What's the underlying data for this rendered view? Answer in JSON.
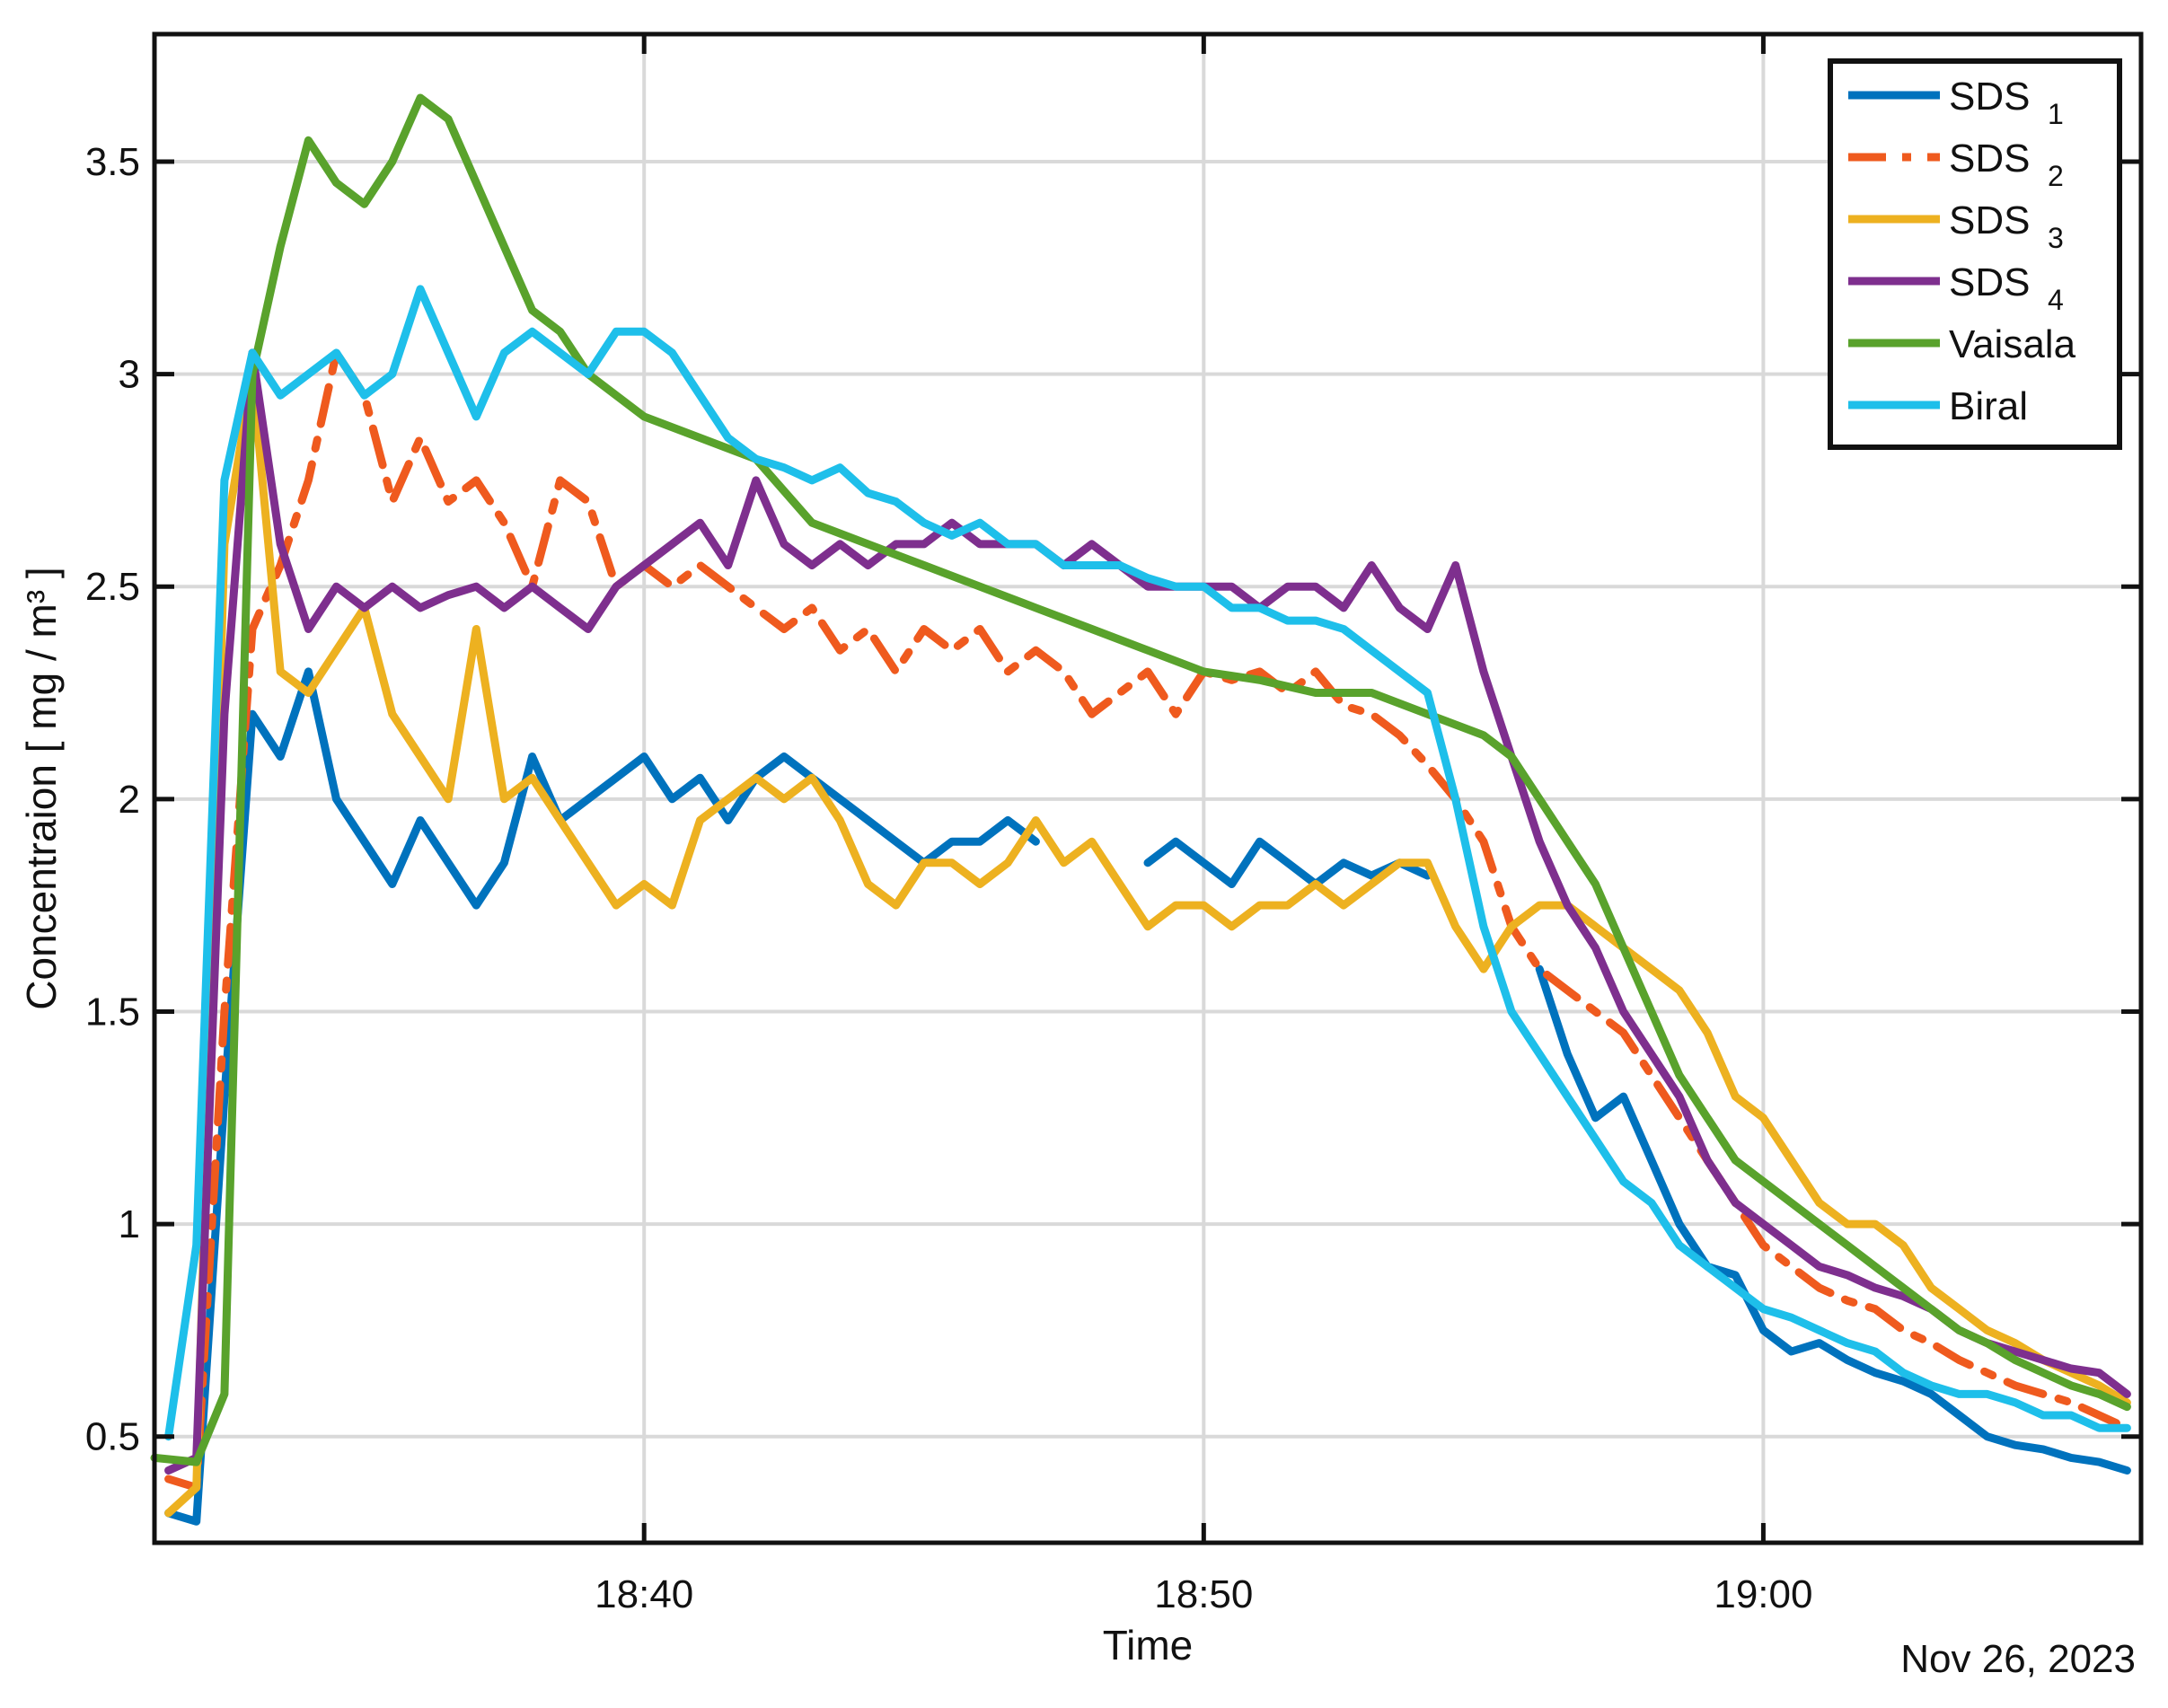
{
  "chart_data": {
    "type": "line",
    "title": "",
    "xlabel": "Time",
    "ylabel": "Concentraion [ mg / m³ ]",
    "date_label": "Nov 26, 2023",
    "xlim": [
      "18:31:15",
      "19:06:45"
    ],
    "ylim": [
      0.25,
      3.8
    ],
    "grid": true,
    "legend_position": "top-right",
    "x_ticks": [
      "18:40",
      "18:50",
      "19:00"
    ],
    "y_ticks": [
      "0.5",
      "1",
      "1.5",
      "2",
      "2.5",
      "3",
      "3.5"
    ],
    "x_unit": "time (HH:MM:SS, Nov 26, 2023)",
    "series": [
      {
        "name": "SDS 1",
        "legend_main": "SDS",
        "legend_sub": "1",
        "color": "#0072BD",
        "dashed": false,
        "x": [
          "18:31:30",
          "18:32:00",
          "18:32:30",
          "18:33:00",
          "18:33:30",
          "18:34:00",
          "18:34:30",
          "18:35:00",
          "18:35:30",
          "18:36:00",
          "18:36:30",
          "18:37:00",
          "18:37:30",
          "18:38:00",
          "18:38:30",
          "18:39:00",
          "18:39:30",
          "18:40:00",
          "18:40:30",
          "18:41:00",
          "18:41:30",
          "18:42:00",
          "18:42:30",
          "18:43:00",
          "18:43:30",
          "18:44:00",
          "18:44:30",
          "18:45:00",
          "18:45:30",
          "18:46:00",
          "18:46:30",
          "18:47:00",
          "18:47:30",
          "18:48:00",
          "18:48:30",
          "18:49:00",
          "18:49:30",
          "18:50:00",
          "18:50:30",
          "18:51:00",
          "18:51:30",
          "18:52:00",
          "18:52:30",
          "18:53:00",
          "18:53:30",
          "18:54:00",
          "18:54:30",
          "18:55:00",
          "18:55:30",
          "18:56:00",
          "18:56:30",
          "18:57:00",
          "18:57:30",
          "18:58:00",
          "18:58:30",
          "18:59:00",
          "18:59:30",
          "19:00:00",
          "19:00:30",
          "19:01:00",
          "19:01:30",
          "19:02:00",
          "19:02:30",
          "19:03:00",
          "19:03:30",
          "19:04:00",
          "19:04:30",
          "19:05:00",
          "19:05:30",
          "19:06:00",
          "19:06:30"
        ],
        "values": [
          0.32,
          0.3,
          1.3,
          2.2,
          2.1,
          2.3,
          2.0,
          1.9,
          1.8,
          1.95,
          1.85,
          1.75,
          1.85,
          2.1,
          1.95,
          2.0,
          2.05,
          2.1,
          2.0,
          2.05,
          1.95,
          2.05,
          2.1,
          2.05,
          2.0,
          1.95,
          1.9,
          1.85,
          1.9,
          1.9,
          1.95,
          1.9,
          null,
          null,
          null,
          1.85,
          1.9,
          1.85,
          1.8,
          1.9,
          1.85,
          1.8,
          1.85,
          1.82,
          1.85,
          1.82,
          null,
          null,
          null,
          1.6,
          1.4,
          1.25,
          1.3,
          1.15,
          1.0,
          0.9,
          0.88,
          0.75,
          0.7,
          0.72,
          0.68,
          0.65,
          0.63,
          0.6,
          0.55,
          0.5,
          0.48,
          0.47,
          0.45,
          0.44,
          0.42
        ]
      },
      {
        "name": "SDS 2",
        "legend_main": "SDS",
        "legend_sub": "2",
        "color": "#EF5A1E",
        "dashed": true,
        "x": [
          "18:31:30",
          "18:32:00",
          "18:32:30",
          "18:33:00",
          "18:33:30",
          "18:34:00",
          "18:34:30",
          "18:35:00",
          "18:35:30",
          "18:36:00",
          "18:36:30",
          "18:37:00",
          "18:37:30",
          "18:38:00",
          "18:38:30",
          "18:39:00",
          "18:39:30",
          "18:40:00",
          "18:40:30",
          "18:41:00",
          "18:41:30",
          "18:42:00",
          "18:42:30",
          "18:43:00",
          "18:43:30",
          "18:44:00",
          "18:44:30",
          "18:45:00",
          "18:45:30",
          "18:46:00",
          "18:46:30",
          "18:47:00",
          "18:47:30",
          "18:48:00",
          "18:48:30",
          "18:49:00",
          "18:49:30",
          "18:50:00",
          "18:50:30",
          "18:51:00",
          "18:51:30",
          "18:52:00",
          "18:52:30",
          "18:53:00",
          "18:53:30",
          "18:54:00",
          "18:54:30",
          "18:55:00",
          "18:55:30",
          "18:56:00",
          "18:56:30",
          "18:57:00",
          "18:57:30",
          "18:58:00",
          "18:58:30",
          "18:59:00",
          "18:59:30",
          "19:00:00",
          "19:00:30",
          "19:01:00",
          "19:01:30",
          "19:02:00",
          "19:02:30",
          "19:03:00",
          "19:03:30",
          "19:04:00",
          "19:04:30",
          "19:05:00",
          "19:05:30",
          "19:06:00",
          "19:06:30"
        ],
        "values": [
          0.4,
          0.38,
          1.5,
          2.4,
          2.55,
          2.75,
          3.05,
          2.95,
          2.7,
          2.85,
          2.7,
          2.75,
          2.65,
          2.5,
          2.75,
          2.7,
          2.5,
          2.55,
          2.5,
          2.55,
          2.5,
          2.45,
          2.4,
          2.45,
          2.35,
          2.4,
          2.3,
          2.4,
          2.35,
          2.4,
          2.3,
          2.35,
          2.3,
          2.2,
          2.25,
          2.3,
          2.2,
          2.3,
          2.28,
          2.3,
          2.25,
          2.3,
          2.22,
          2.2,
          2.15,
          2.08,
          2.0,
          1.9,
          1.7,
          1.6,
          1.55,
          1.5,
          1.45,
          1.35,
          1.25,
          1.15,
          1.05,
          0.95,
          0.9,
          0.85,
          0.82,
          0.8,
          0.75,
          0.72,
          0.68,
          0.65,
          0.62,
          0.6,
          0.58,
          0.55,
          0.52
        ]
      },
      {
        "name": "SDS 3",
        "legend_main": "SDS",
        "legend_sub": "3",
        "color": "#EDB120",
        "dashed": false,
        "x": [
          "18:31:30",
          "18:32:00",
          "18:32:30",
          "18:33:00",
          "18:33:30",
          "18:34:00",
          "18:34:30",
          "18:35:00",
          "18:35:30",
          "18:36:00",
          "18:36:30",
          "18:37:00",
          "18:37:30",
          "18:38:00",
          "18:38:30",
          "18:39:00",
          "18:39:30",
          "18:40:00",
          "18:40:30",
          "18:41:00",
          "18:41:30",
          "18:42:00",
          "18:42:30",
          "18:43:00",
          "18:43:30",
          "18:44:00",
          "18:44:30",
          "18:45:00",
          "18:45:30",
          "18:46:00",
          "18:46:30",
          "18:47:00",
          "18:47:30",
          "18:48:00",
          "18:48:30",
          "18:49:00",
          "18:49:30",
          "18:50:00",
          "18:50:30",
          "18:51:00",
          "18:51:30",
          "18:52:00",
          "18:52:30",
          "18:53:00",
          "18:53:30",
          "18:54:00",
          "18:54:30",
          "18:55:00",
          "18:55:30",
          "18:56:00",
          "18:56:30",
          "18:57:00",
          "18:57:30",
          "18:58:00",
          "18:58:30",
          "18:59:00",
          "18:59:30",
          "19:00:00",
          "19:00:30",
          "19:01:00",
          "19:01:30",
          "19:02:00",
          "19:02:30",
          "19:03:00",
          "19:03:30",
          "19:04:00",
          "19:04:30",
          "19:05:00",
          "19:05:30",
          "19:06:00",
          "19:06:30"
        ],
        "values": [
          0.32,
          0.38,
          2.6,
          3.0,
          2.3,
          2.25,
          2.35,
          2.45,
          2.2,
          2.1,
          2.0,
          2.4,
          2.0,
          2.05,
          1.95,
          1.85,
          1.75,
          1.8,
          1.75,
          1.95,
          2.0,
          2.05,
          2.0,
          2.05,
          1.95,
          1.8,
          1.75,
          1.85,
          1.85,
          1.8,
          1.85,
          1.95,
          1.85,
          1.9,
          1.8,
          1.7,
          1.75,
          1.75,
          1.7,
          1.75,
          1.75,
          1.8,
          1.75,
          1.8,
          1.85,
          1.85,
          1.7,
          1.6,
          1.7,
          1.75,
          1.75,
          1.7,
          1.65,
          1.6,
          1.55,
          1.45,
          1.3,
          1.25,
          1.15,
          1.05,
          1.0,
          1.0,
          0.95,
          0.85,
          0.8,
          0.75,
          0.72,
          0.68,
          0.65,
          0.62,
          0.58
        ]
      },
      {
        "name": "SDS 4",
        "legend_main": "SDS",
        "legend_sub": "4",
        "color": "#7E2F8E",
        "dashed": false,
        "x": [
          "18:31:30",
          "18:32:00",
          "18:32:30",
          "18:33:00",
          "18:33:30",
          "18:34:00",
          "18:34:30",
          "18:35:00",
          "18:35:30",
          "18:36:00",
          "18:36:30",
          "18:37:00",
          "18:37:30",
          "18:38:00",
          "18:38:30",
          "18:39:00",
          "18:39:30",
          "18:40:00",
          "18:40:30",
          "18:41:00",
          "18:41:30",
          "18:42:00",
          "18:42:30",
          "18:43:00",
          "18:43:30",
          "18:44:00",
          "18:44:30",
          "18:45:00",
          "18:45:30",
          "18:46:00",
          "18:46:30",
          "18:47:00",
          "18:47:30",
          "18:48:00",
          "18:48:30",
          "18:49:00",
          "18:49:30",
          "18:50:00",
          "18:50:30",
          "18:51:00",
          "18:51:30",
          "18:52:00",
          "18:52:30",
          "18:53:00",
          "18:53:30",
          "18:54:00",
          "18:54:30",
          "18:55:00",
          "18:55:30",
          "18:56:00",
          "18:56:30",
          "18:57:00",
          "18:57:30",
          "18:58:00",
          "18:58:30",
          "18:59:00",
          "18:59:30",
          "19:00:00",
          "19:00:30",
          "19:01:00",
          "19:01:30",
          "19:02:00",
          "19:02:30",
          "19:03:00",
          "19:03:30",
          "19:04:00",
          "19:04:30",
          "19:05:00",
          "19:05:30",
          "19:06:00",
          "19:06:30"
        ],
        "values": [
          0.42,
          0.45,
          2.2,
          3.05,
          2.6,
          2.4,
          2.5,
          2.45,
          2.5,
          2.45,
          2.48,
          2.5,
          2.45,
          2.5,
          2.45,
          2.4,
          2.5,
          2.55,
          2.6,
          2.65,
          2.55,
          2.75,
          2.6,
          2.55,
          2.6,
          2.55,
          2.6,
          2.6,
          2.65,
          2.6,
          2.6,
          2.6,
          2.55,
          2.6,
          2.55,
          2.5,
          2.5,
          2.5,
          2.5,
          2.45,
          2.5,
          2.5,
          2.45,
          2.55,
          2.45,
          2.4,
          2.55,
          2.3,
          2.1,
          1.9,
          1.75,
          1.65,
          1.5,
          1.4,
          1.3,
          1.15,
          1.05,
          1.0,
          0.95,
          0.9,
          0.88,
          0.85,
          0.83,
          0.8,
          0.75,
          0.72,
          0.7,
          0.68,
          0.66,
          0.65,
          0.6
        ]
      },
      {
        "name": "Vaisala",
        "legend_main": "Vaisala",
        "legend_sub": "",
        "color": "#59A22C",
        "dashed": false,
        "x": [
          "18:31:15",
          "18:32:00",
          "18:32:30",
          "18:33:00",
          "18:33:30",
          "18:34:00",
          "18:34:30",
          "18:35:00",
          "18:35:30",
          "18:36:00",
          "18:36:30",
          "18:37:00",
          "18:37:30",
          "18:38:00",
          "18:38:30",
          "18:39:00",
          "18:39:30",
          "18:40:00",
          "18:41:00",
          "18:42:00",
          "18:43:00",
          "18:44:00",
          "18:45:00",
          "18:46:00",
          "18:47:00",
          "18:48:00",
          "18:49:00",
          "18:50:00",
          "18:51:00",
          "18:52:00",
          "18:53:00",
          "18:54:00",
          "18:55:00",
          "18:55:30",
          "18:56:00",
          "18:56:30",
          "18:57:00",
          "18:57:30",
          "18:58:00",
          "18:58:30",
          "18:59:00",
          "18:59:30",
          "19:00:00",
          "19:00:30",
          "19:01:00",
          "19:01:30",
          "19:02:00",
          "19:02:30",
          "19:03:00",
          "19:03:30",
          "19:04:00",
          "19:04:30",
          "19:05:00",
          "19:05:30",
          "19:06:00",
          "19:06:30"
        ],
        "values": [
          0.45,
          0.44,
          0.6,
          3.0,
          3.3,
          3.55,
          3.45,
          3.4,
          3.5,
          3.65,
          3.6,
          3.45,
          3.3,
          3.15,
          3.1,
          3.0,
          2.95,
          2.9,
          2.85,
          2.8,
          2.65,
          2.6,
          2.55,
          2.5,
          2.45,
          2.4,
          2.35,
          2.3,
          2.28,
          2.25,
          2.25,
          2.2,
          2.15,
          2.1,
          2.0,
          1.9,
          1.8,
          1.65,
          1.5,
          1.35,
          1.25,
          1.15,
          1.1,
          1.05,
          1.0,
          0.95,
          0.9,
          0.85,
          0.8,
          0.75,
          0.72,
          0.68,
          0.65,
          0.62,
          0.6,
          0.57
        ]
      },
      {
        "name": "Biral",
        "legend_main": "Biral",
        "legend_sub": "",
        "color": "#1EBFEA",
        "dashed": false,
        "x": [
          "18:31:30",
          "18:32:00",
          "18:32:30",
          "18:33:00",
          "18:33:30",
          "18:34:00",
          "18:34:30",
          "18:35:00",
          "18:35:30",
          "18:36:00",
          "18:36:30",
          "18:37:00",
          "18:37:30",
          "18:38:00",
          "18:38:30",
          "18:39:00",
          "18:39:30",
          "18:40:00",
          "18:40:30",
          "18:41:00",
          "18:41:30",
          "18:42:00",
          "18:42:30",
          "18:43:00",
          "18:43:30",
          "18:44:00",
          "18:44:30",
          "18:45:00",
          "18:45:30",
          "18:46:00",
          "18:46:30",
          "18:47:00",
          "18:47:30",
          "18:48:00",
          "18:48:30",
          "18:49:00",
          "18:49:30",
          "18:50:00",
          "18:50:30",
          "18:51:00",
          "18:51:30",
          "18:52:00",
          "18:52:30",
          "18:53:00",
          "18:53:30",
          "18:54:00",
          "18:54:30",
          "18:55:00",
          "18:55:30",
          "18:56:00",
          "18:56:30",
          "18:57:00",
          "18:57:30",
          "18:58:00",
          "18:58:30",
          "18:59:00",
          "18:59:30",
          "19:00:00",
          "19:00:30",
          "19:01:00",
          "19:01:30",
          "19:02:00",
          "19:02:30",
          "19:03:00",
          "19:03:30",
          "19:04:00",
          "19:04:30",
          "19:05:00",
          "19:05:30",
          "19:06:00",
          "19:06:30"
        ],
        "values": [
          0.5,
          0.95,
          2.75,
          3.05,
          2.95,
          3.0,
          3.05,
          2.95,
          3.0,
          3.2,
          3.05,
          2.9,
          3.05,
          3.1,
          3.05,
          3.0,
          3.1,
          3.1,
          3.05,
          2.95,
          2.85,
          2.8,
          2.78,
          2.75,
          2.78,
          2.72,
          2.7,
          2.65,
          2.62,
          2.65,
          2.6,
          2.6,
          2.55,
          2.55,
          2.55,
          2.52,
          2.5,
          2.5,
          2.45,
          2.45,
          2.42,
          2.42,
          2.4,
          2.35,
          2.3,
          2.25,
          2.0,
          1.7,
          1.5,
          1.4,
          1.3,
          1.2,
          1.1,
          1.05,
          0.95,
          0.9,
          0.85,
          0.8,
          0.78,
          0.75,
          0.72,
          0.7,
          0.65,
          0.62,
          0.6,
          0.6,
          0.58,
          0.55,
          0.55,
          0.52,
          0.52
        ]
      }
    ]
  }
}
